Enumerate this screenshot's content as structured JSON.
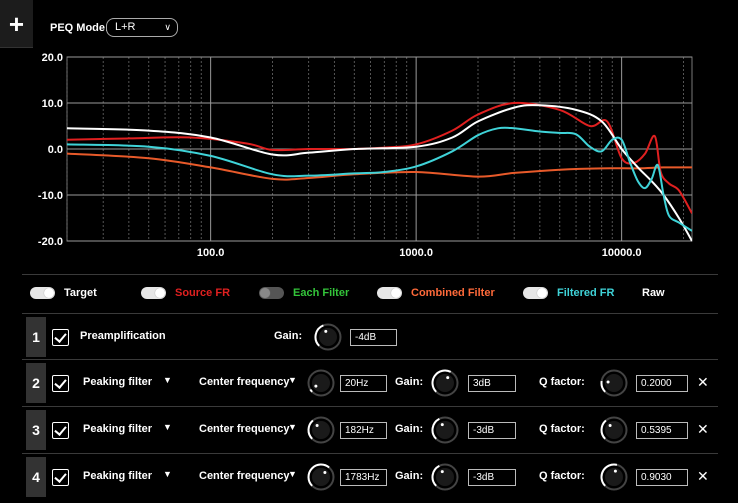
{
  "toolbar": {
    "add_label": "+"
  },
  "peq": {
    "mode_label": "PEQ Mode:",
    "mode_value": "L+R"
  },
  "chart_data": {
    "type": "line",
    "x_scale": "log",
    "xlim": [
      20,
      22000
    ],
    "ylim": [
      -20,
      20
    ],
    "y_ticks": [
      20,
      10,
      0,
      -10,
      -20
    ],
    "y_tick_labels": [
      "20.0",
      "10.0",
      "0.0",
      "-10.0",
      "-20.0"
    ],
    "x_ticks": [
      100,
      1000,
      10000
    ],
    "x_tick_labels": [
      "100.0",
      "1000.0",
      "10000.0"
    ],
    "grid": true,
    "series": [
      {
        "name": "Combined Filter",
        "color": "#e85a2a",
        "x": [
          20,
          50,
          100,
          200,
          300,
          500,
          1000,
          2000,
          3000,
          5000,
          8000,
          12000,
          16000,
          22000
        ],
        "y": [
          -1,
          -2,
          -4,
          -6.5,
          -6.3,
          -5.5,
          -5,
          -6,
          -5.2,
          -4.5,
          -4.2,
          -4.2,
          -4,
          -4
        ]
      },
      {
        "name": "Source FR",
        "color": "#e02020",
        "x": [
          20,
          40,
          80,
          150,
          200,
          300,
          500,
          700,
          1000,
          1500,
          2000,
          3000,
          5000,
          7000,
          8500,
          10000,
          11500,
          13000,
          14500,
          15500,
          17000,
          19000,
          22000
        ],
        "y": [
          2,
          2.3,
          2.5,
          1.2,
          -0.2,
          0,
          0,
          0.3,
          1,
          4,
          7.5,
          10,
          8.5,
          5,
          6,
          -2,
          -3,
          -1,
          2.8,
          -5,
          -7.5,
          -9,
          -14
        ]
      },
      {
        "name": "Target",
        "color": "#ffffff",
        "x": [
          20,
          50,
          100,
          200,
          300,
          500,
          1000,
          1500,
          2000,
          3000,
          4000,
          6000,
          8000,
          10000,
          12000,
          14000,
          16000,
          19000,
          22000
        ],
        "y": [
          4.5,
          4,
          2.5,
          -1.2,
          -0.8,
          0,
          0.5,
          2.5,
          6,
          9,
          9.5,
          8.5,
          6,
          0,
          -4,
          -7,
          -10,
          -15,
          -20
        ]
      },
      {
        "name": "Filtered FR",
        "color": "#3fd3d8",
        "x": [
          20,
          50,
          100,
          200,
          300,
          500,
          700,
          1000,
          1500,
          2000,
          2500,
          3000,
          4000,
          5000,
          6000,
          7000,
          8000,
          9000,
          10000,
          11000,
          12000,
          13000,
          14000,
          15000,
          16000,
          17000,
          19000,
          22000
        ],
        "y": [
          1,
          0.5,
          -1.5,
          -5.5,
          -5.8,
          -5.3,
          -5,
          -3.8,
          -0.5,
          3,
          4.5,
          4.5,
          3.8,
          3.5,
          3.2,
          0.5,
          -0.5,
          2,
          2,
          -3,
          -7,
          -8.5,
          -6.5,
          -3.5,
          -10,
          -14.5,
          -16,
          -17.8
        ]
      }
    ]
  },
  "legend": [
    {
      "label": "Target",
      "color": "#ffffff",
      "on": true
    },
    {
      "label": "Source FR",
      "color": "#e02020",
      "on": true
    },
    {
      "label": "Each Filter",
      "color": "#33c43a",
      "on": false
    },
    {
      "label": "Combined Filter",
      "color": "#ff6a3a",
      "on": true
    },
    {
      "label": "Filtered FR",
      "color": "#3fd3d8",
      "on": true
    },
    {
      "label": "Raw",
      "color": "#ffffff",
      "on": null
    }
  ],
  "preamp": {
    "index": "1",
    "label": "Preamplification",
    "gain_label": "Gain:",
    "gain_value": "-4dB",
    "knob_level": 0.42
  },
  "filters": [
    {
      "index": "2",
      "type": "Peaking filter",
      "freq_label": "Center frequency",
      "freq": "20Hz",
      "gain_label": "Gain:",
      "gain": "3dB",
      "q_label": "Q factor:",
      "q": "0.2000",
      "freq_level": 0.05,
      "gain_level": 0.6,
      "q_level": 0.2
    },
    {
      "index": "3",
      "type": "Peaking filter",
      "freq_label": "Center frequency",
      "freq": "182Hz",
      "gain_label": "Gain:",
      "gain": "-3dB",
      "q_label": "Q factor:",
      "q": "0.5395",
      "freq_level": 0.35,
      "gain_level": 0.4,
      "q_level": 0.35
    },
    {
      "index": "4",
      "type": "Peaking filter",
      "freq_label": "Center frequency",
      "freq": "1783Hz",
      "gain_label": "Gain:",
      "gain": "-3dB",
      "q_label": "Q factor:",
      "q": "0.9030",
      "freq_level": 0.65,
      "gain_level": 0.4,
      "q_level": 0.55
    }
  ]
}
